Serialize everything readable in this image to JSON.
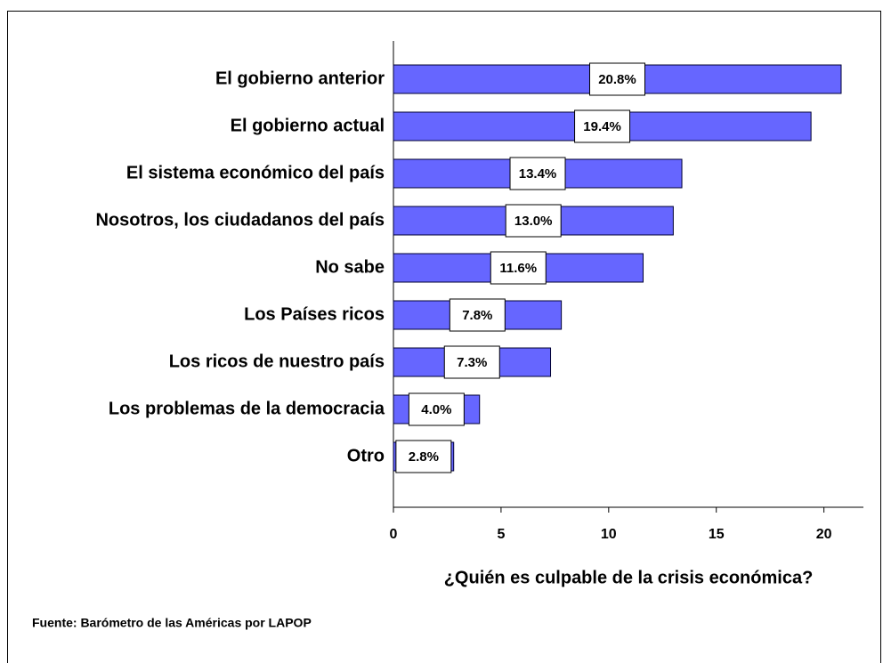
{
  "chart_data": {
    "type": "bar",
    "orientation": "horizontal",
    "categories": [
      "El gobierno anterior",
      "El gobierno actual",
      "El sistema económico del país",
      "Nosotros, los ciudadanos del país",
      "No sabe",
      "Los Países ricos",
      "Los ricos de nuestro país",
      "Los problemas de la democracia",
      "Otro"
    ],
    "values": [
      20.8,
      19.4,
      13.4,
      13.0,
      11.6,
      7.8,
      7.3,
      4.0,
      2.8
    ],
    "value_labels": [
      "20.8%",
      "19.4%",
      "13.4%",
      "13.0%",
      "11.6%",
      "7.8%",
      "7.3%",
      "4.0%",
      "2.8%"
    ],
    "color": "#6666ff",
    "xlim": [
      0,
      22
    ],
    "xticks": [
      0,
      5,
      10,
      15,
      20
    ],
    "xlabel": "¿Quién es culpable de la crisis económica?",
    "source": "Fuente: Barómetro de las Américas por LAPOP"
  }
}
